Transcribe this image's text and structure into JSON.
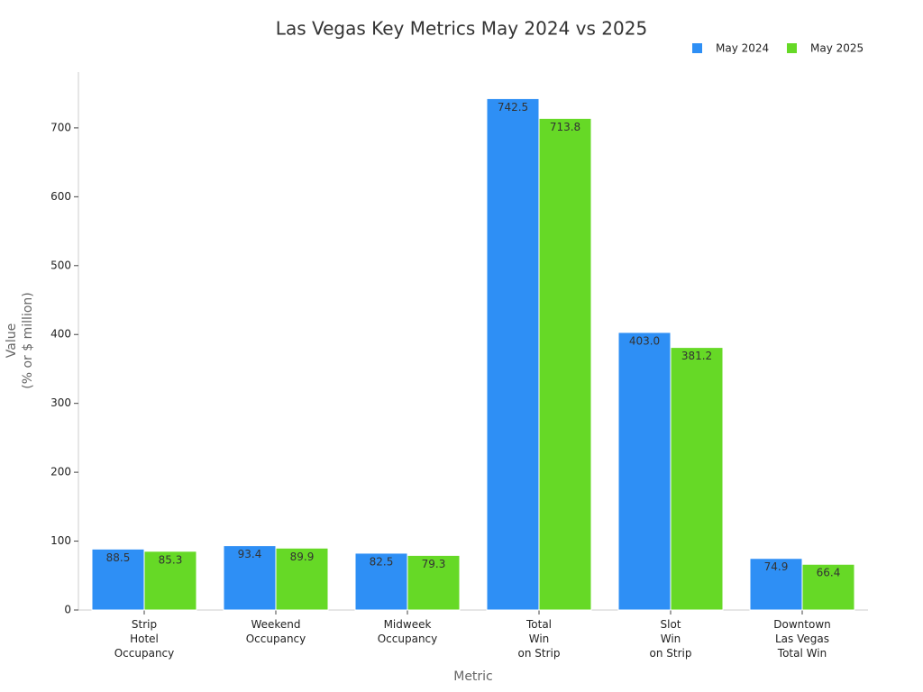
{
  "chart_data": {
    "type": "bar",
    "title": "Las Vegas Key Metrics May 2024 vs 2025",
    "x_label": "Metric",
    "y_label": "Value\n(% or $ million)",
    "categories": [
      "Strip\nHotel\nOccupancy",
      "Weekend\nOccupancy",
      "Midweek\nOccupancy",
      "Total\nWin\non Strip",
      "Slot\nWin\non Strip",
      "Downtown\nLas Vegas\nTotal Win"
    ],
    "series": [
      {
        "name": "May 2024",
        "color": "#2e8ff5",
        "values": [
          88.5,
          93.4,
          82.5,
          742.5,
          403.0,
          74.9
        ],
        "value_labels": [
          "88.5",
          "93.4",
          "82.5",
          "742.5",
          "403.0",
          "74.9"
        ]
      },
      {
        "name": "May 2025",
        "color": "#66d926",
        "values": [
          85.3,
          89.9,
          79.3,
          713.8,
          381.2,
          66.4
        ],
        "value_labels": [
          "85.3",
          "89.9",
          "79.3",
          "713.8",
          "381.2",
          "66.4"
        ]
      }
    ],
    "ylim": [
      0,
      781
    ],
    "yticks": [
      0,
      100,
      200,
      300,
      400,
      500,
      600,
      700
    ],
    "grid": false,
    "legend": "top-right"
  }
}
